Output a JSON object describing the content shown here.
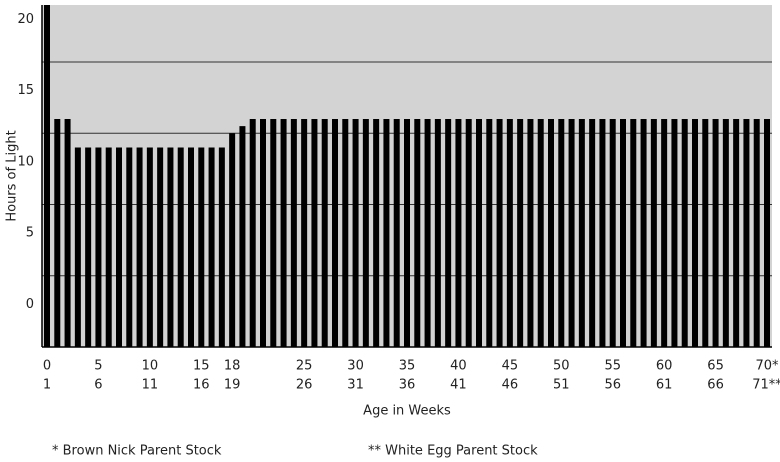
{
  "chart_data": {
    "type": "bar",
    "y_label": "Hours of Light",
    "x_label": "Age in Weeks",
    "categories": [
      "0",
      null,
      null,
      null,
      null,
      "5",
      null,
      null,
      null,
      null,
      "10",
      null,
      null,
      null,
      null,
      "15",
      null,
      null,
      "18",
      null,
      null,
      null,
      null,
      null,
      null,
      "25",
      null,
      null,
      null,
      null,
      "30",
      null,
      null,
      null,
      null,
      "35",
      null,
      null,
      null,
      null,
      "40",
      null,
      null,
      null,
      null,
      "45",
      null,
      null,
      null,
      null,
      "50",
      null,
      null,
      null,
      null,
      "55",
      null,
      null,
      null,
      null,
      "60",
      null,
      null,
      null,
      null,
      "65",
      null,
      null,
      null,
      null,
      "70*"
    ],
    "categories2": [
      "1",
      null,
      null,
      null,
      null,
      "6",
      null,
      null,
      null,
      null,
      "11",
      null,
      null,
      null,
      null,
      "16",
      null,
      null,
      "19",
      null,
      null,
      null,
      null,
      null,
      null,
      "26",
      null,
      null,
      null,
      null,
      "31",
      null,
      null,
      null,
      null,
      "36",
      null,
      null,
      null,
      null,
      "41",
      null,
      null,
      null,
      null,
      "46",
      null,
      null,
      null,
      null,
      "51",
      null,
      null,
      null,
      null,
      "56",
      null,
      null,
      null,
      null,
      "61",
      null,
      null,
      null,
      null,
      "66",
      null,
      null,
      null,
      null,
      "71**"
    ],
    "values": [
      21,
      13,
      13,
      11,
      11,
      11,
      11,
      11,
      11,
      11,
      11,
      11,
      11,
      11,
      11,
      11,
      11,
      11,
      12,
      12.5,
      13,
      13,
      13,
      13,
      13,
      13,
      13,
      13,
      13,
      13,
      13,
      13,
      13,
      13,
      13,
      13,
      13,
      13,
      13,
      13,
      13,
      13,
      13,
      13,
      13,
      13,
      13,
      13,
      13,
      13,
      13,
      13,
      13,
      13,
      13,
      13,
      13,
      13,
      13,
      13,
      13,
      13,
      13,
      13,
      13,
      13,
      13,
      13,
      13,
      13,
      13
    ],
    "color": "#000000",
    "background": "#d3d3d3",
    "ylim": [
      -3,
      21
    ],
    "yticks": [
      0,
      5,
      10,
      15,
      20
    ],
    "gridlines": [
      2,
      7,
      12,
      17
    ],
    "footnotes": [
      "* Brown Nick Parent Stock",
      "** White Egg Parent Stock"
    ]
  }
}
